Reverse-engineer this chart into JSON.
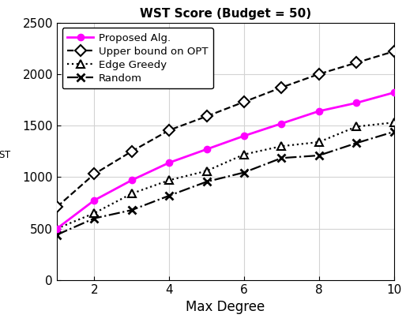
{
  "title": "WST Score (Budget = 50)",
  "xlabel": "Max Degree",
  "ylabel": "$f_{\\mathrm{WST}}$",
  "x": [
    1,
    2,
    3,
    4,
    5,
    6,
    7,
    8,
    9,
    10
  ],
  "proposed": [
    500,
    775,
    970,
    1140,
    1270,
    1400,
    1520,
    1640,
    1720,
    1820
  ],
  "upper_bound": [
    710,
    1030,
    1250,
    1455,
    1590,
    1730,
    1870,
    2000,
    2110,
    2220
  ],
  "edge_greedy": [
    500,
    650,
    840,
    970,
    1060,
    1220,
    1300,
    1340,
    1490,
    1530
  ],
  "random": [
    440,
    600,
    680,
    820,
    955,
    1045,
    1185,
    1210,
    1330,
    1440
  ],
  "ylim": [
    0,
    2500
  ],
  "xlim": [
    1,
    10
  ],
  "xticks": [
    2,
    4,
    6,
    8,
    10
  ],
  "yticks": [
    0,
    500,
    1000,
    1500,
    2000,
    2500
  ],
  "proposed_color": "#FF00FF",
  "others_color": "#000000",
  "grid_color": "#D3D3D3",
  "legend_labels": [
    "Proposed Alg.",
    "Upper bound on OPT",
    "Edge Greedy",
    "Random"
  ]
}
